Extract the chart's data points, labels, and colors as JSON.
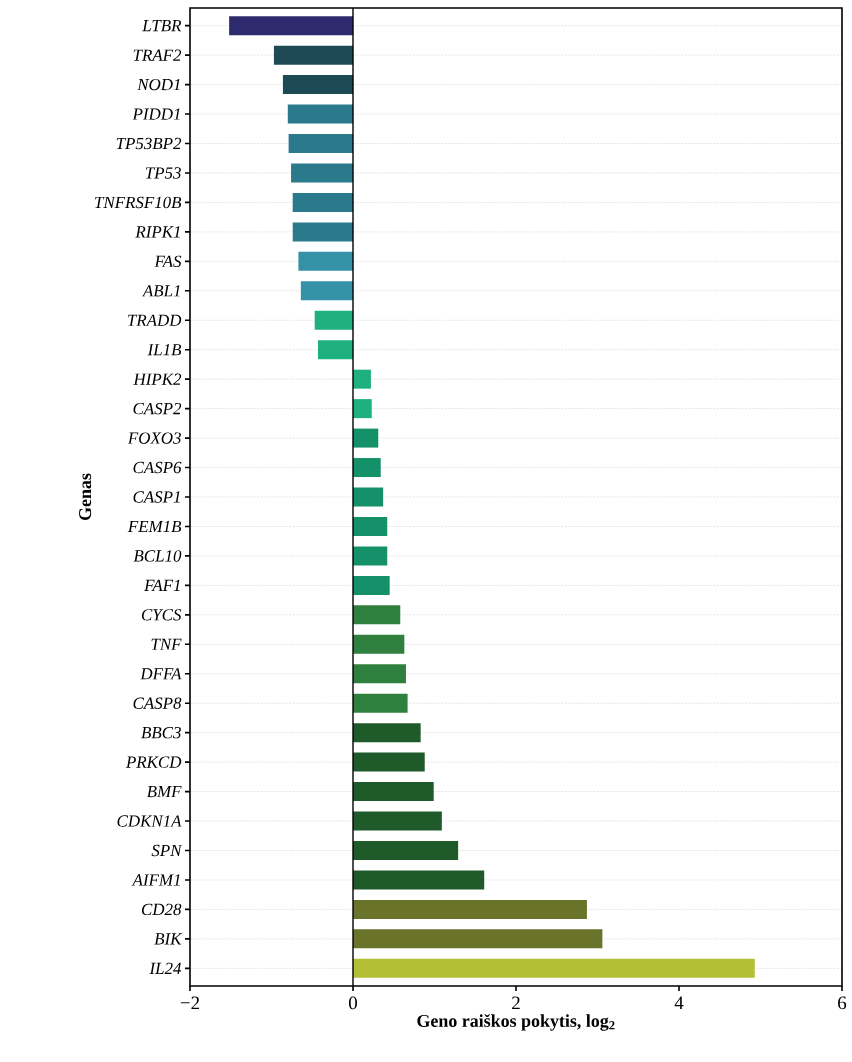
{
  "chart_data": {
    "type": "bar",
    "orientation": "horizontal",
    "xlabel": "Geno raiškos pokytis, log$_{2}$",
    "ylabel": "Genas",
    "categories": [
      "LTBR",
      "TRAF2",
      "NOD1",
      "PIDD1",
      "TP53BP2",
      "TP53",
      "TNFRSF10B",
      "RIPK1",
      "FAS",
      "ABL1",
      "TRADD",
      "IL1B",
      "HIPK2",
      "CASP2",
      "FOXO3",
      "CASP6",
      "CASP1",
      "FEM1B",
      "BCL10",
      "FAF1",
      "CYCS",
      "TNF",
      "DFFA",
      "CASP8",
      "BBC3",
      "PRKCD",
      "BMF",
      "CDKN1A",
      "SPN",
      "AIFM1",
      "CD28",
      "BIK",
      "IL24"
    ],
    "values": [
      -1.52,
      -0.97,
      -0.86,
      -0.8,
      -0.79,
      -0.76,
      -0.74,
      -0.74,
      -0.67,
      -0.64,
      -0.47,
      -0.43,
      0.22,
      0.23,
      0.31,
      0.34,
      0.37,
      0.42,
      0.42,
      0.45,
      0.58,
      0.63,
      0.65,
      0.67,
      0.83,
      0.88,
      0.99,
      1.09,
      1.29,
      1.61,
      2.87,
      3.06,
      4.93
    ],
    "colors": [
      "#2e2a6e",
      "#1d4a55",
      "#1d4a55",
      "#2a7a8c",
      "#2a7a8c",
      "#2a7a8c",
      "#2a7a8c",
      "#2a7a8c",
      "#3591a6",
      "#3591a6",
      "#1fb07f",
      "#1fb07f",
      "#1fb07f",
      "#1fb07f",
      "#15916a",
      "#15916a",
      "#15916a",
      "#15916a",
      "#15916a",
      "#15916a",
      "#2f803e",
      "#2f803e",
      "#2f803e",
      "#2f803e",
      "#1f5a2b",
      "#1f5a2b",
      "#1f5a2b",
      "#1f5a2b",
      "#1f5a2b",
      "#1f5a2b",
      "#6a732a",
      "#6a732a",
      "#b3bf35"
    ],
    "xlim": [
      -2,
      6
    ],
    "xticks": [
      {
        "value": -2,
        "label": "−2"
      },
      0,
      2,
      4,
      6
    ],
    "grid": "y",
    "ref_lines": [
      {
        "axis": "x",
        "value": 0
      }
    ]
  }
}
